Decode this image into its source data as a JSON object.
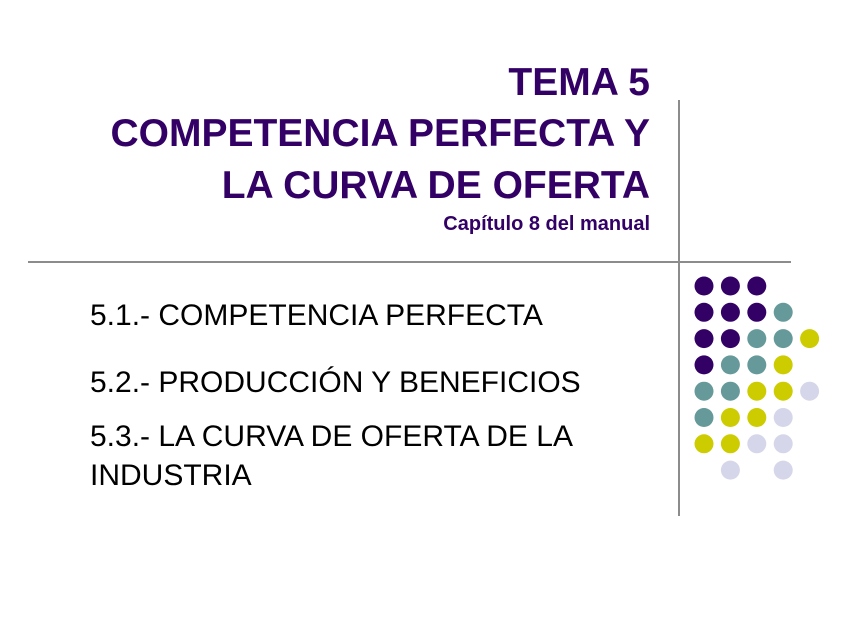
{
  "title": {
    "line1": "TEMA 5",
    "line2": "COMPETENCIA PERFECTA Y",
    "line3": "LA CURVA DE OFERTA",
    "subtitle": "Capítulo 8 del manual"
  },
  "items": [
    {
      "label": "5.1.- COMPETENCIA PERFECTA"
    },
    {
      "label": "5.2.- PRODUCCIÓN Y BENEFICIOS"
    },
    {
      "label": "5.3.- LA CURVA DE OFERTA DE LA"
    },
    {
      "label": "INDUSTRIA"
    }
  ],
  "colors": {
    "title": "#330066",
    "purple": "#330066",
    "teal": "#669999",
    "yellow": "#cccc00",
    "lavender": "#d6d6ea",
    "rule": "#8c8c8c"
  },
  "decoration": {
    "dot_grid": [
      "PPP",
      "PPPT",
      "PPTTY",
      "PTTY",
      "TTYYL",
      "TYYL",
      "YYLL",
      " L L"
    ]
  }
}
